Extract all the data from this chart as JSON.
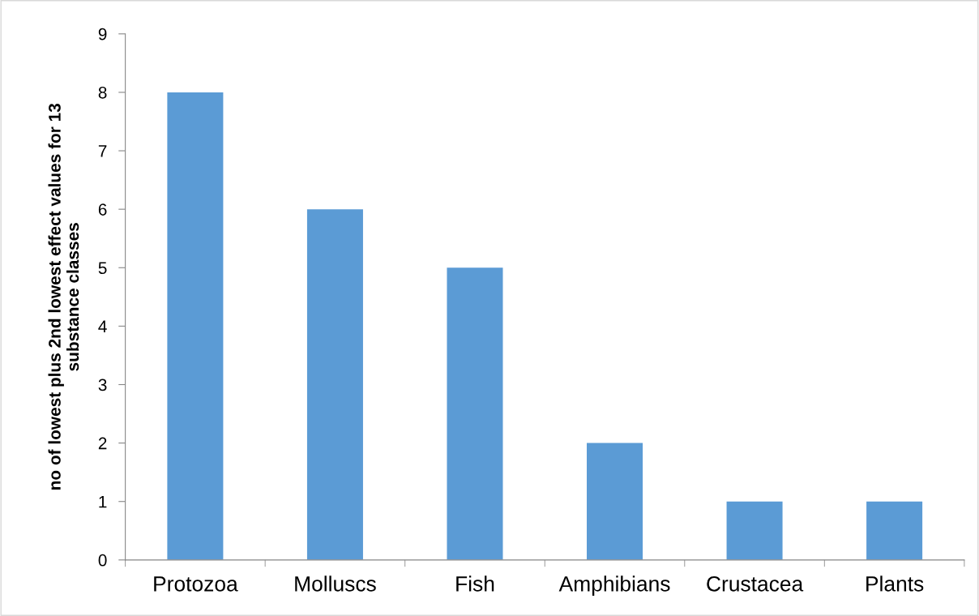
{
  "chart_data": {
    "type": "bar",
    "ylabel": "no of lowest plus 2nd lowest effect values for 13\nsubstance classes",
    "categories": [
      "Protozoa",
      "Molluscs",
      "Fish",
      "Amphibians",
      "Crustacea",
      "Plants"
    ],
    "values": [
      8,
      6,
      5,
      2,
      1,
      1
    ],
    "color": "#5b9bd5",
    "ylim": [
      0,
      9
    ],
    "yticks": [
      0,
      1,
      2,
      3,
      4,
      5,
      6,
      7,
      8,
      9
    ],
    "grid": false,
    "legend": false
  }
}
